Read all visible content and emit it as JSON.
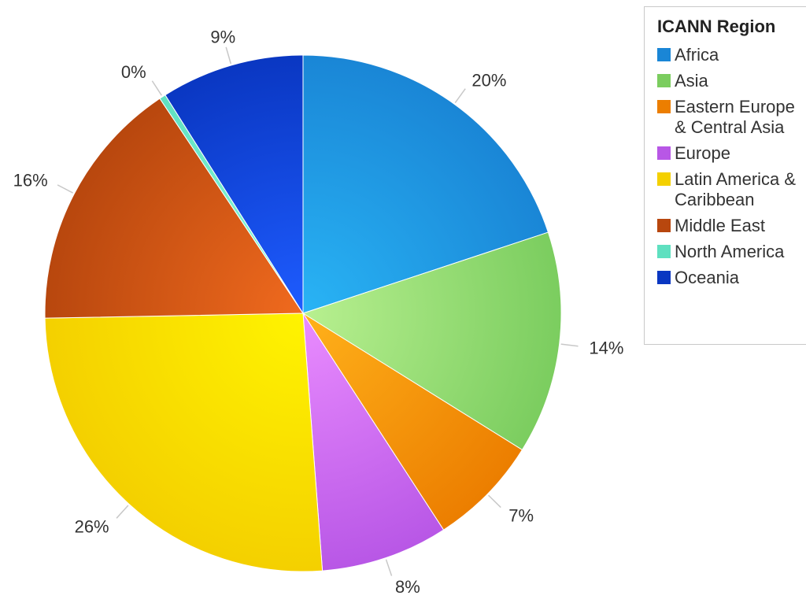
{
  "chart_data": {
    "type": "pie",
    "legend_title": "ICANN Region",
    "legend_position": "right",
    "slices": [
      {
        "name": "Africa",
        "value": 20,
        "label": "20%",
        "color": "#1a86d6",
        "highlight": "#29b4f5"
      },
      {
        "name": "Asia",
        "value": 14,
        "label": "14%",
        "color": "#7bcd5f",
        "highlight": "#b8f090"
      },
      {
        "name": "Eastern Europe & Central Asia",
        "value": 7,
        "label": "7%",
        "color": "#ec7e00",
        "highlight": "#ffb11a"
      },
      {
        "name": "Europe",
        "value": 8,
        "label": "8%",
        "color": "#b857e6",
        "highlight": "#ea8cff"
      },
      {
        "name": "Latin America & Caribbean",
        "value": 26,
        "label": "26%",
        "color": "#f4d000",
        "highlight": "#fff400"
      },
      {
        "name": "Middle East",
        "value": 16,
        "label": "16%",
        "color": "#b8470e",
        "highlight": "#f06a1e"
      },
      {
        "name": "North America",
        "value": 0.4,
        "label": "0%",
        "color": "#5fe0c0",
        "highlight": "#90ffe0"
      },
      {
        "name": "Oceania",
        "value": 9,
        "label": "9%",
        "color": "#0a37c2",
        "highlight": "#1e5cff"
      }
    ]
  }
}
